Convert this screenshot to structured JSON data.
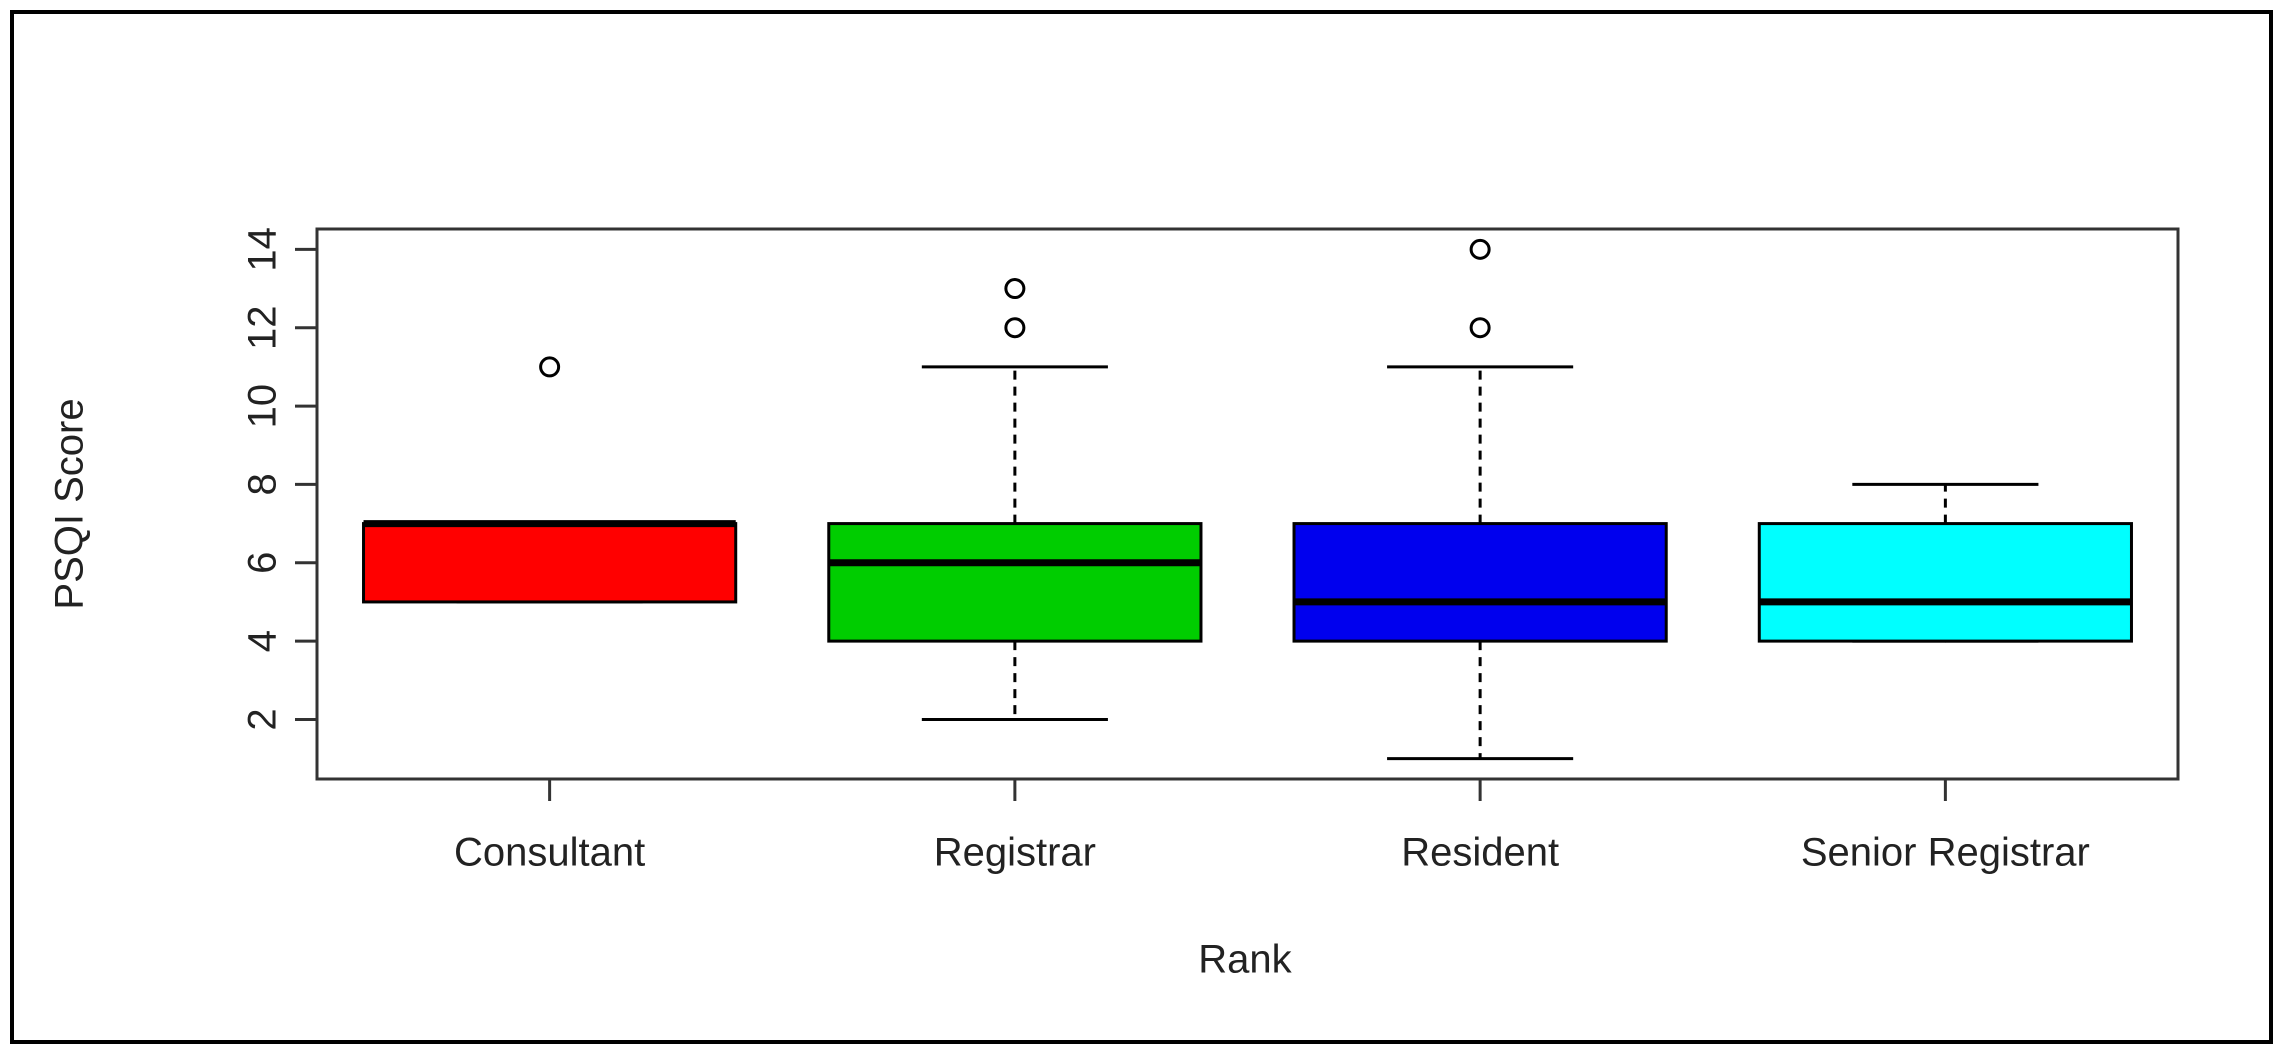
{
  "chart_data": {
    "type": "box",
    "xlabel": "Rank",
    "ylabel": "PSQI Score",
    "categories": [
      "Consultant",
      "Registrar",
      "Resident",
      "Senior Registrar"
    ],
    "colors": [
      "#ff0000",
      "#00cd00",
      "#0000ee",
      "#00ffff"
    ],
    "boxes": [
      {
        "low": 5,
        "q1": 5,
        "median": 7,
        "q3": 7,
        "high": 7,
        "outliers": [
          11
        ]
      },
      {
        "low": 2,
        "q1": 4,
        "median": 6,
        "q3": 7,
        "high": 11,
        "outliers": [
          12,
          13
        ]
      },
      {
        "low": 1,
        "q1": 4,
        "median": 5,
        "q3": 7,
        "high": 11,
        "outliers": [
          12,
          14
        ]
      },
      {
        "low": 4,
        "q1": 4,
        "median": 5,
        "q3": 7,
        "high": 8,
        "outliers": []
      }
    ],
    "ylim": [
      0.48,
      14.52
    ],
    "yticks": [
      2,
      4,
      6,
      8,
      10,
      12,
      14
    ]
  }
}
